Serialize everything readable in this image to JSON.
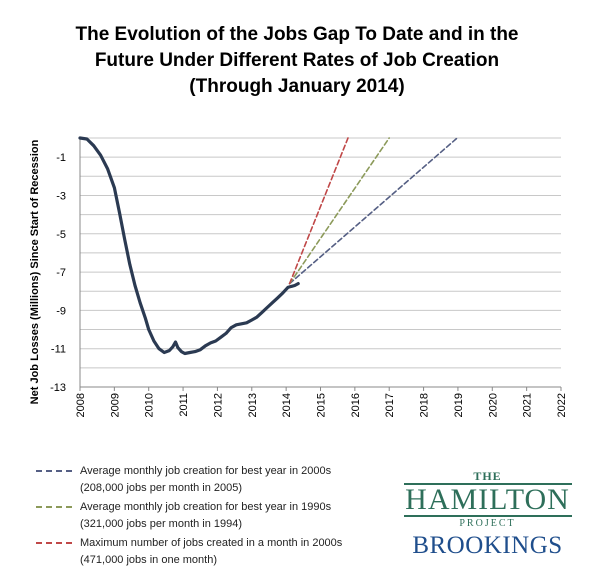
{
  "title": {
    "line1": "The Evolution of the Jobs Gap To Date and in the",
    "line2": "Future Under Different Rates of Job Creation",
    "line3": "(Through January 2014)"
  },
  "chart_data": {
    "type": "line",
    "ylabel": "Net Job Losses (Millions) Since Start of Recession",
    "xlabel": "",
    "xlim": [
      2008,
      2022
    ],
    "ylim": [
      -13,
      0
    ],
    "x_ticks": [
      "2008",
      "2009",
      "2010",
      "2011",
      "2012",
      "2013",
      "2014",
      "2015",
      "2016",
      "2017",
      "2018",
      "2019",
      "2020",
      "2021",
      "2022"
    ],
    "y_ticks": [
      "-1",
      "-3",
      "-5",
      "-7",
      "-9",
      "-11",
      "-13"
    ],
    "grid": "horizontal",
    "series": [
      {
        "style": "solid",
        "color": "#2b3a52",
        "points": [
          [
            2008.0,
            0.0
          ],
          [
            2008.2,
            -0.05
          ],
          [
            2008.4,
            -0.4
          ],
          [
            2008.6,
            -0.9
          ],
          [
            2008.8,
            -1.6
          ],
          [
            2009.0,
            -2.6
          ],
          [
            2009.15,
            -3.9
          ],
          [
            2009.3,
            -5.3
          ],
          [
            2009.45,
            -6.6
          ],
          [
            2009.6,
            -7.7
          ],
          [
            2009.75,
            -8.6
          ],
          [
            2009.9,
            -9.4
          ],
          [
            2010.0,
            -10.0
          ],
          [
            2010.15,
            -10.6
          ],
          [
            2010.3,
            -11.0
          ],
          [
            2010.45,
            -11.2
          ],
          [
            2010.6,
            -11.1
          ],
          [
            2010.7,
            -10.9
          ],
          [
            2010.78,
            -10.65
          ],
          [
            2010.85,
            -10.95
          ],
          [
            2010.95,
            -11.15
          ],
          [
            2011.05,
            -11.25
          ],
          [
            2011.2,
            -11.2
          ],
          [
            2011.35,
            -11.15
          ],
          [
            2011.5,
            -11.05
          ],
          [
            2011.65,
            -10.85
          ],
          [
            2011.8,
            -10.7
          ],
          [
            2011.95,
            -10.6
          ],
          [
            2012.1,
            -10.4
          ],
          [
            2012.25,
            -10.2
          ],
          [
            2012.4,
            -9.9
          ],
          [
            2012.55,
            -9.75
          ],
          [
            2012.7,
            -9.7
          ],
          [
            2012.85,
            -9.65
          ],
          [
            2013.0,
            -9.5
          ],
          [
            2013.15,
            -9.35
          ],
          [
            2013.3,
            -9.1
          ],
          [
            2013.45,
            -8.85
          ],
          [
            2013.6,
            -8.6
          ],
          [
            2013.75,
            -8.35
          ],
          [
            2013.9,
            -8.1
          ],
          [
            2014.05,
            -7.8
          ],
          [
            2014.15,
            -7.75
          ],
          [
            2014.25,
            -7.7
          ],
          [
            2014.35,
            -7.6
          ]
        ]
      },
      {
        "name": "Average monthly job creation for best year in 2000s",
        "style": "dashed",
        "color": "#555f84",
        "points": [
          [
            2014.1,
            -7.6
          ],
          [
            2018.98,
            0.0
          ]
        ]
      },
      {
        "name": "Average monthly job creation for best year in 1990s",
        "style": "dashed",
        "color": "#8c9a5a",
        "points": [
          [
            2014.1,
            -7.6
          ],
          [
            2017.0,
            0.0
          ]
        ]
      },
      {
        "name": "Maximum number of jobs created in a month in 2000s",
        "style": "dashed",
        "color": "#c04848",
        "points": [
          [
            2014.1,
            -7.6
          ],
          [
            2015.8,
            0.0
          ]
        ]
      }
    ]
  },
  "legend": [
    {
      "line1": "Average monthly job creation for best year in 2000s",
      "line2": "(208,000 jobs per month in 2005)",
      "color": "#555f84"
    },
    {
      "line1": "Average monthly job creation for best year in 1990s",
      "line2": "(321,000 jobs per month in 1994)",
      "color": "#8c9a5a"
    },
    {
      "line1": "Maximum number of jobs created in a month in 2000s",
      "line2": "(471,000 jobs in one month)",
      "color": "#c04848"
    }
  ],
  "logos": {
    "hamilton_the": "THE",
    "hamilton_name": "HAMILTON",
    "hamilton_project": "PROJECT",
    "brookings": "BROOKINGS"
  }
}
